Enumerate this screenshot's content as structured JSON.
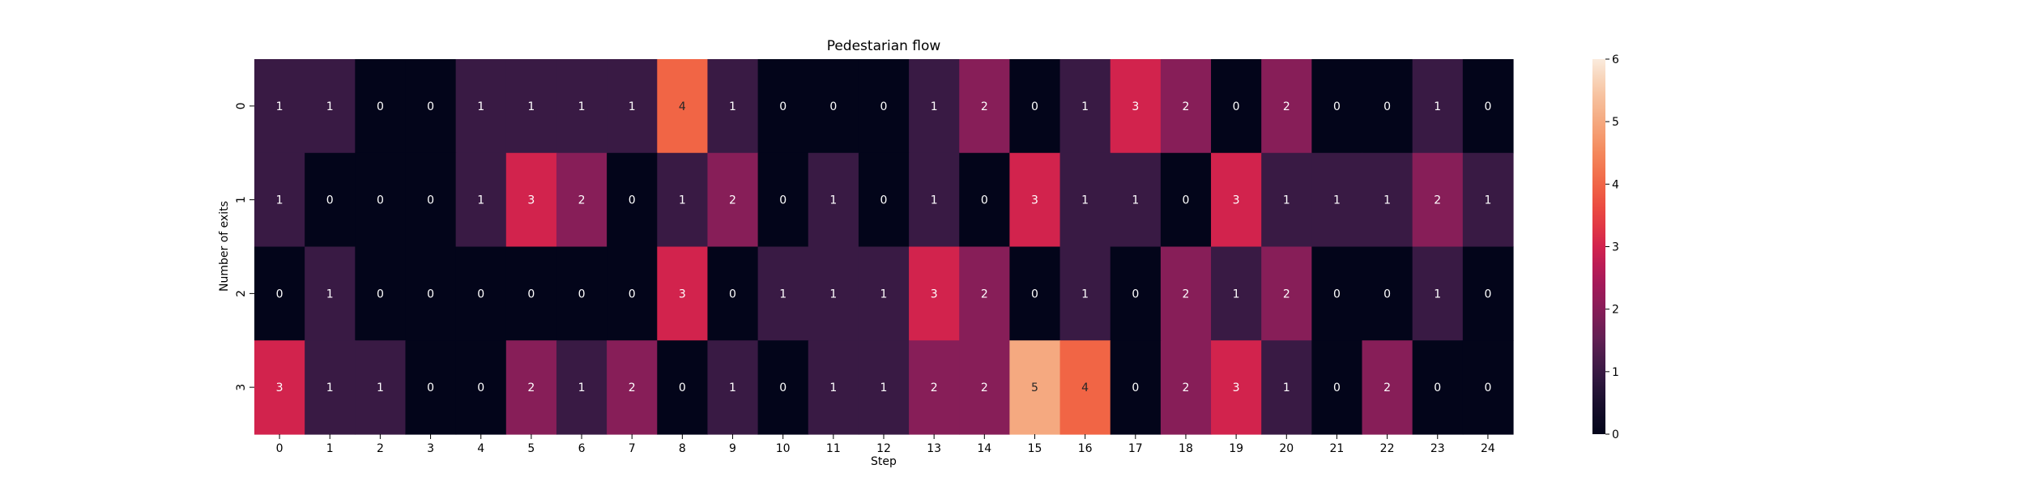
{
  "chart_data": {
    "type": "heatmap",
    "title": "Pedestarian flow",
    "xlabel": "Step",
    "ylabel": "Number of exits",
    "x_categories": [
      "0",
      "1",
      "2",
      "3",
      "4",
      "5",
      "6",
      "7",
      "8",
      "9",
      "10",
      "11",
      "12",
      "13",
      "14",
      "15",
      "16",
      "17",
      "18",
      "19",
      "20",
      "21",
      "22",
      "23",
      "24"
    ],
    "y_categories": [
      "0",
      "1",
      "2",
      "3"
    ],
    "values": [
      [
        1,
        1,
        0,
        0,
        1,
        1,
        1,
        1,
        4,
        1,
        0,
        0,
        0,
        1,
        2,
        0,
        1,
        3,
        2,
        0,
        2,
        0,
        0,
        1,
        0
      ],
      [
        1,
        0,
        0,
        0,
        1,
        3,
        2,
        0,
        1,
        2,
        0,
        1,
        0,
        1,
        0,
        3,
        1,
        1,
        0,
        3,
        1,
        1,
        1,
        2,
        1
      ],
      [
        0,
        1,
        0,
        0,
        0,
        0,
        0,
        0,
        3,
        0,
        1,
        1,
        1,
        3,
        2,
        0,
        1,
        0,
        2,
        1,
        2,
        0,
        0,
        1,
        0
      ],
      [
        3,
        1,
        1,
        0,
        0,
        2,
        1,
        2,
        0,
        1,
        0,
        1,
        1,
        2,
        2,
        5,
        4,
        0,
        2,
        3,
        1,
        0,
        2,
        0,
        0
      ]
    ],
    "colorbar": {
      "vmin": 0,
      "vmax": 6,
      "ticks": [
        "0",
        "1",
        "2",
        "3",
        "4",
        "5",
        "6"
      ],
      "colormap": "rocket"
    },
    "annotations": true
  }
}
